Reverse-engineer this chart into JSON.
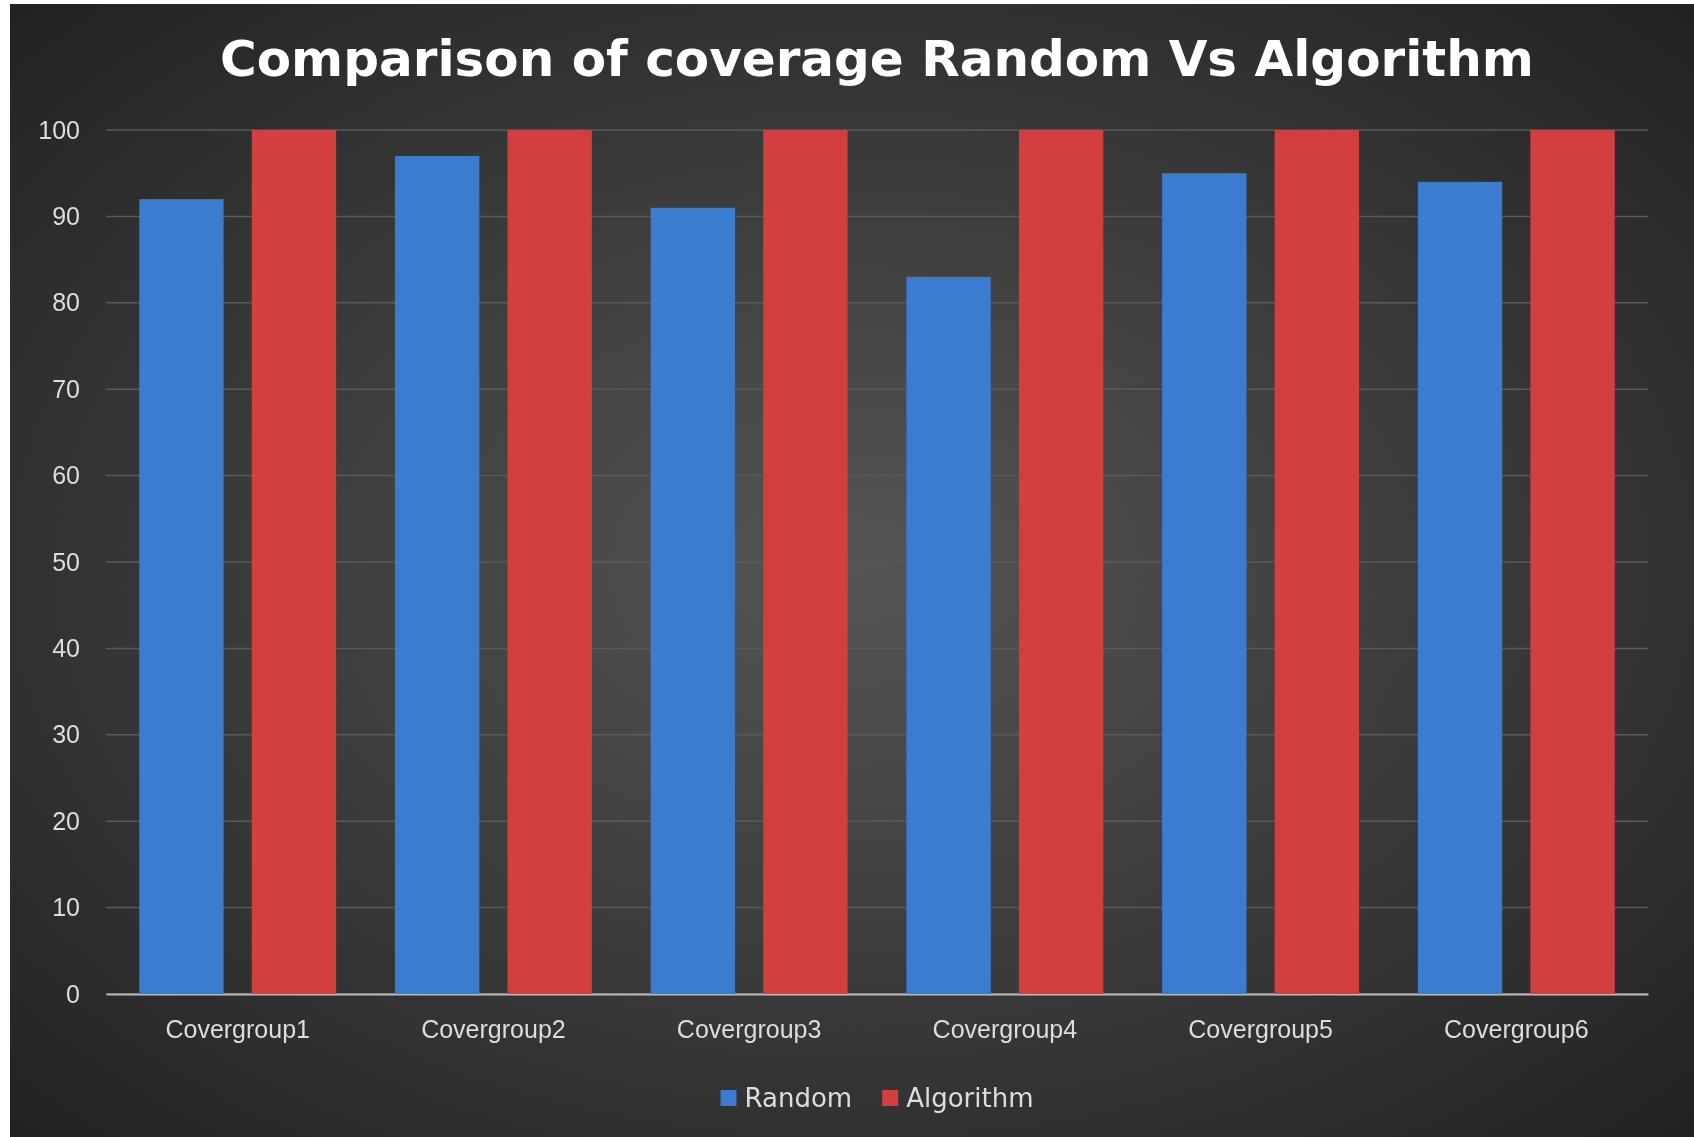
{
  "chart_data": {
    "type": "bar",
    "title": "Comparison of coverage Random Vs Algorithm",
    "categories": [
      "Covergroup1",
      "Covergroup2",
      "Covergroup3",
      "Covergroup4",
      "Covergroup5",
      "Covergroup6"
    ],
    "series": [
      {
        "name": "Random",
        "color": "#3b7bd0",
        "values": [
          92,
          97,
          91,
          83,
          95,
          94
        ]
      },
      {
        "name": "Algorithm",
        "color": "#d23f3f",
        "values": [
          100,
          100,
          100,
          100,
          100,
          100
        ]
      }
    ],
    "ylim": [
      0,
      100
    ],
    "yticks": [
      0,
      10,
      20,
      30,
      40,
      50,
      60,
      70,
      80,
      90,
      100
    ],
    "grid": "y",
    "legend": "bottom"
  }
}
